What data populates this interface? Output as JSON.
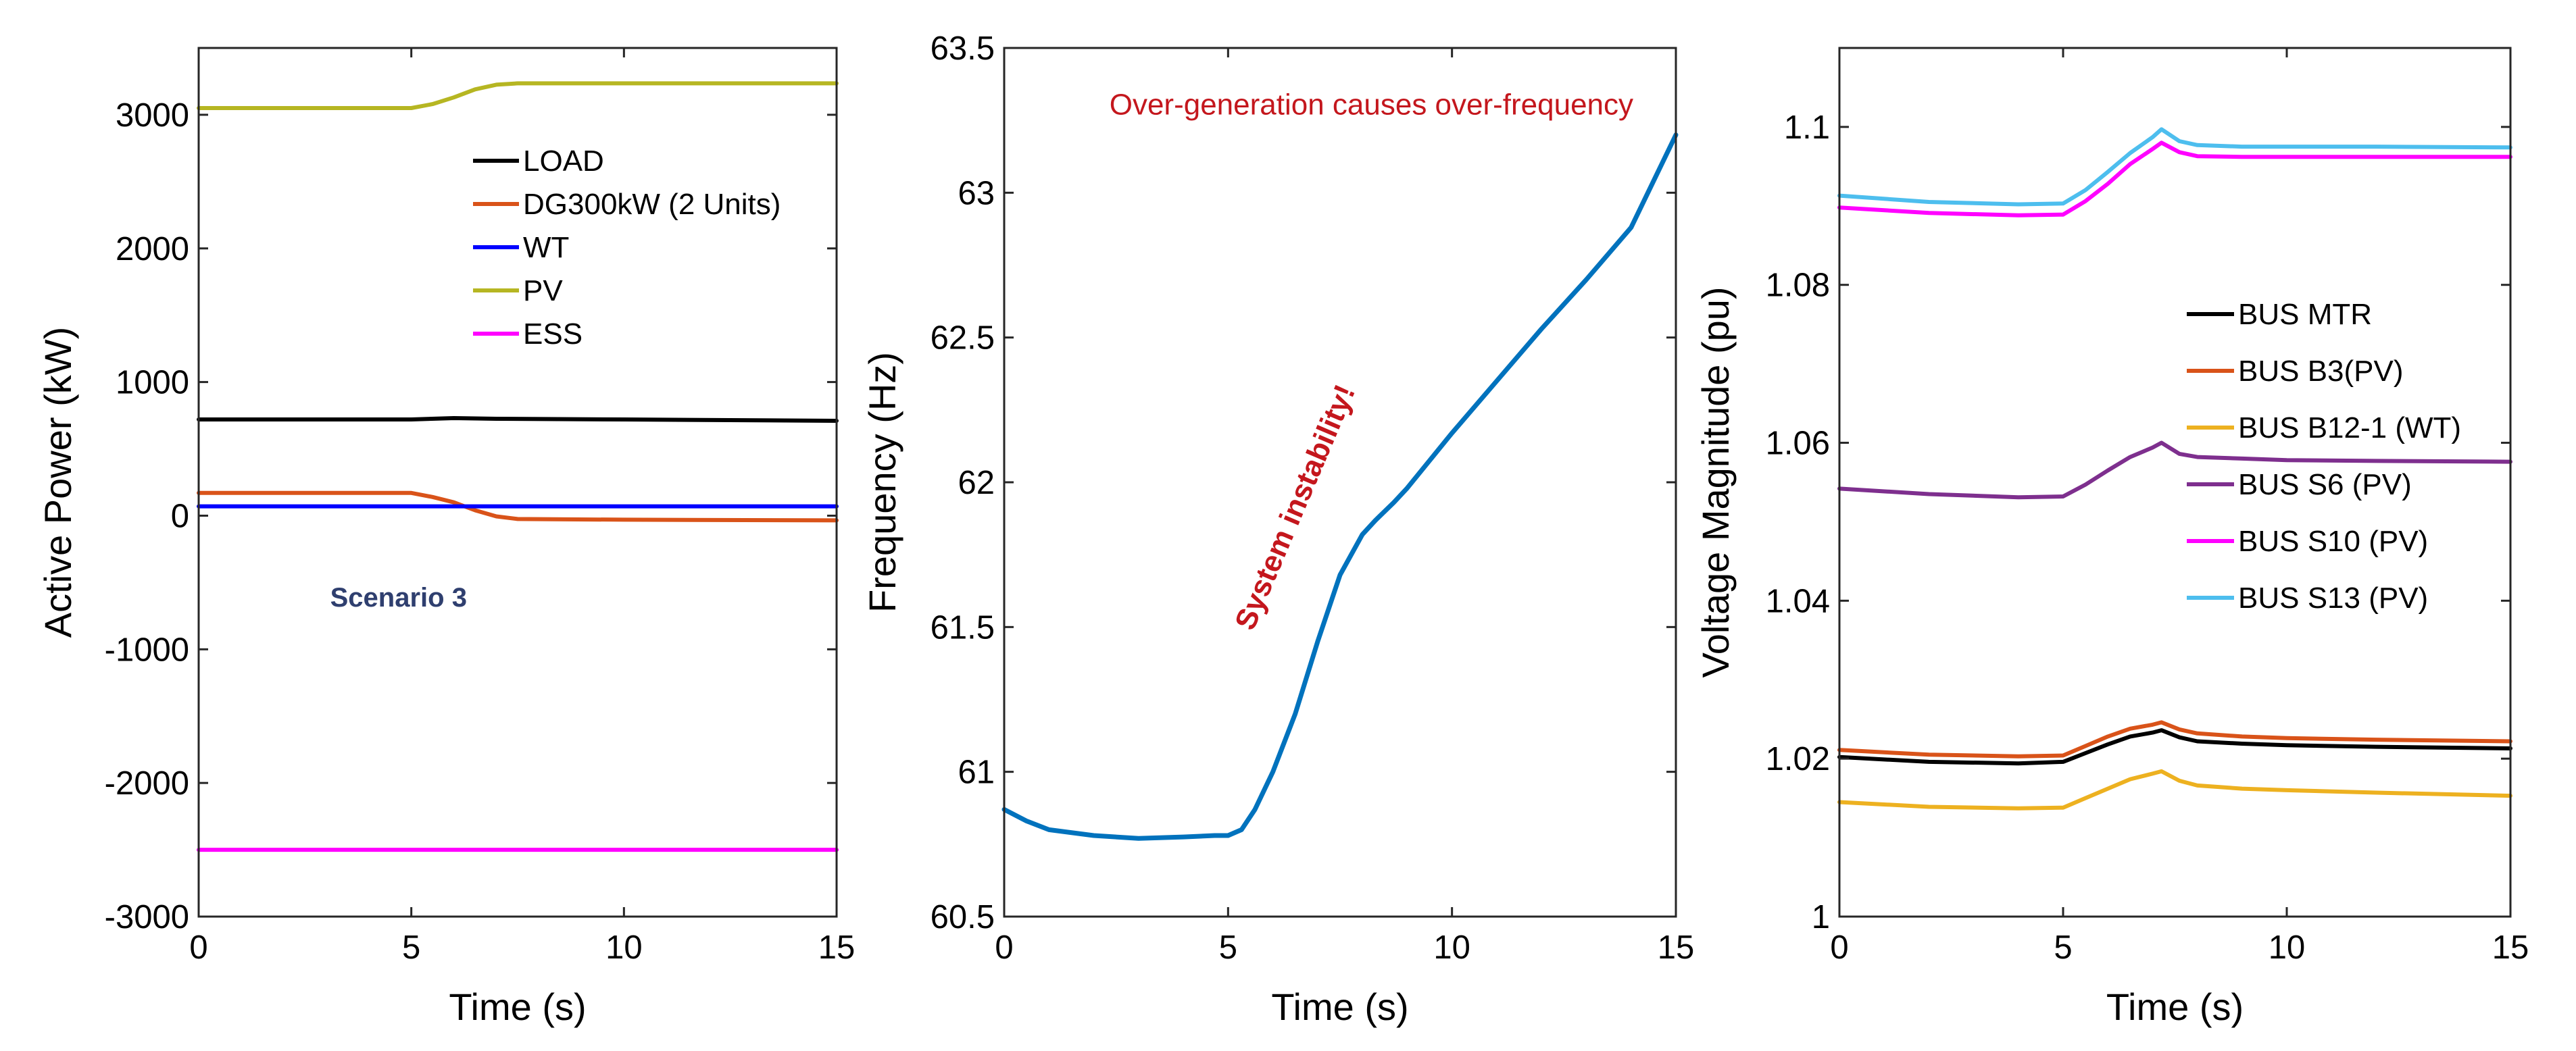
{
  "chart_data": [
    {
      "type": "line",
      "xlabel": "Time (s)",
      "ylabel": "Active Power (kW)",
      "xlim": [
        0,
        15
      ],
      "ylim": [
        -3000,
        3500
      ],
      "xticks": [
        0,
        5,
        10,
        15
      ],
      "yticks": [
        -3000,
        -2000,
        -1000,
        0,
        1000,
        2000,
        3000
      ],
      "grid": false,
      "legend_position": "upper-center",
      "annotations": [
        {
          "text": "Scenario 3",
          "x": 4.7,
          "y": -680,
          "color": "#2f3f6f",
          "bold": true
        }
      ],
      "series": [
        {
          "name": "LOAD",
          "color": "#000000",
          "points": [
            [
              0,
              720
            ],
            [
              5,
              720
            ],
            [
              6,
              730
            ],
            [
              7,
              725
            ],
            [
              10,
              720
            ],
            [
              15,
              710
            ]
          ]
        },
        {
          "name": "DG300kW (2 Units)",
          "color": "#d95319",
          "points": [
            [
              0,
              170
            ],
            [
              5,
              170
            ],
            [
              5.5,
              140
            ],
            [
              6,
              100
            ],
            [
              6.5,
              40
            ],
            [
              7,
              -5
            ],
            [
              7.5,
              -25
            ],
            [
              10,
              -30
            ],
            [
              15,
              -35
            ]
          ]
        },
        {
          "name": "WT",
          "color": "#0000ff",
          "points": [
            [
              0,
              70
            ],
            [
              5,
              70
            ],
            [
              10,
              70
            ],
            [
              15,
              70
            ]
          ]
        },
        {
          "name": "PV",
          "color": "#b6b622",
          "points": [
            [
              0,
              3050
            ],
            [
              5,
              3050
            ],
            [
              5.5,
              3080
            ],
            [
              6,
              3130
            ],
            [
              6.5,
              3190
            ],
            [
              7,
              3225
            ],
            [
              7.5,
              3235
            ],
            [
              10,
              3235
            ],
            [
              15,
              3235
            ]
          ]
        },
        {
          "name": "ESS",
          "color": "#ff00ff",
          "points": [
            [
              0,
              -2500
            ],
            [
              5,
              -2500
            ],
            [
              10,
              -2500
            ],
            [
              15,
              -2500
            ]
          ]
        }
      ]
    },
    {
      "type": "line",
      "xlabel": "Time (s)",
      "ylabel": "Frequency (Hz)",
      "xlim": [
        0,
        15
      ],
      "ylim": [
        60.5,
        63.5
      ],
      "xticks": [
        0,
        5,
        10,
        15
      ],
      "yticks": [
        60.5,
        61,
        61.5,
        62,
        62.5,
        63,
        63.5
      ],
      "grid": false,
      "annotations": [
        {
          "text": "Over-generation causes over-frequency",
          "x": 8.2,
          "y": 63.27,
          "color": "#c4171d",
          "bold": false
        },
        {
          "text": "System instability!",
          "x": 6.7,
          "y": 61.9,
          "color": "#c4171d",
          "bold": true,
          "rotation": -67
        }
      ],
      "series": [
        {
          "name": "",
          "color": "#0072bd",
          "points": [
            [
              0,
              60.87
            ],
            [
              0.5,
              60.83
            ],
            [
              1,
              60.8
            ],
            [
              2,
              60.78
            ],
            [
              3,
              60.77
            ],
            [
              4,
              60.775
            ],
            [
              4.7,
              60.78
            ],
            [
              5,
              60.78
            ],
            [
              5.3,
              60.8
            ],
            [
              5.6,
              60.87
            ],
            [
              6,
              61.0
            ],
            [
              6.5,
              61.2
            ],
            [
              7,
              61.45
            ],
            [
              7.5,
              61.68
            ],
            [
              8,
              61.82
            ],
            [
              8.3,
              61.87
            ],
            [
              8.7,
              61.93
            ],
            [
              9,
              61.98
            ],
            [
              10,
              62.17
            ],
            [
              11,
              62.35
            ],
            [
              12,
              62.53
            ],
            [
              13,
              62.7
            ],
            [
              14,
              62.88
            ],
            [
              15,
              63.2
            ]
          ]
        }
      ]
    },
    {
      "type": "line",
      "xlabel": "Time (s)",
      "ylabel": "Voltage Magnitude (pu)",
      "xlim": [
        0,
        15
      ],
      "ylim": [
        1,
        1.11
      ],
      "xticks": [
        0,
        5,
        10,
        15
      ],
      "yticks": [
        1,
        1.02,
        1.04,
        1.06,
        1.08,
        1.1
      ],
      "yticklabels": [
        "1",
        "1.02",
        "1.04",
        "1.06",
        "1.08",
        "1.1"
      ],
      "grid": false,
      "legend_position": "right",
      "series": [
        {
          "name": "BUS MTR",
          "color": "#000000",
          "points": [
            [
              0,
              1.0202
            ],
            [
              2,
              1.0196
            ],
            [
              4,
              1.0194
            ],
            [
              5,
              1.0196
            ],
            [
              5.5,
              1.0207
            ],
            [
              6,
              1.0218
            ],
            [
              6.5,
              1.0228
            ],
            [
              7,
              1.0233
            ],
            [
              7.2,
              1.0236
            ],
            [
              7.6,
              1.0227
            ],
            [
              8,
              1.0222
            ],
            [
              9,
              1.0219
            ],
            [
              10,
              1.0217
            ],
            [
              12,
              1.0215
            ],
            [
              15,
              1.0213
            ]
          ]
        },
        {
          "name": "BUS B3(PV)",
          "color": "#d95319",
          "points": [
            [
              0,
              1.0211
            ],
            [
              2,
              1.0205
            ],
            [
              4,
              1.0203
            ],
            [
              5,
              1.0204
            ],
            [
              5.5,
              1.0216
            ],
            [
              6,
              1.0228
            ],
            [
              6.5,
              1.0238
            ],
            [
              7,
              1.0243
            ],
            [
              7.2,
              1.0246
            ],
            [
              7.6,
              1.0237
            ],
            [
              8,
              1.0232
            ],
            [
              9,
              1.0228
            ],
            [
              10,
              1.0226
            ],
            [
              12,
              1.0224
            ],
            [
              15,
              1.0222
            ]
          ]
        },
        {
          "name": "BUS B12-1 (WT)",
          "color": "#edb120",
          "points": [
            [
              0,
              1.0145
            ],
            [
              2,
              1.0139
            ],
            [
              4,
              1.0137
            ],
            [
              5,
              1.0138
            ],
            [
              5.5,
              1.015
            ],
            [
              6,
              1.0162
            ],
            [
              6.5,
              1.0174
            ],
            [
              7,
              1.0181
            ],
            [
              7.2,
              1.0184
            ],
            [
              7.6,
              1.0172
            ],
            [
              8,
              1.0166
            ],
            [
              9,
              1.0162
            ],
            [
              10,
              1.016
            ],
            [
              12,
              1.0157
            ],
            [
              15,
              1.0153
            ]
          ]
        },
        {
          "name": "BUS S6 (PV)",
          "color": "#7e2f8e",
          "points": [
            [
              0,
              1.0542
            ],
            [
              2,
              1.0535
            ],
            [
              4,
              1.0531
            ],
            [
              5,
              1.0532
            ],
            [
              5.5,
              1.0547
            ],
            [
              6,
              1.0565
            ],
            [
              6.5,
              1.0582
            ],
            [
              7,
              1.0594
            ],
            [
              7.2,
              1.06
            ],
            [
              7.6,
              1.0586
            ],
            [
              8,
              1.0582
            ],
            [
              9,
              1.058
            ],
            [
              10,
              1.0578
            ],
            [
              12,
              1.0577
            ],
            [
              15,
              1.0576
            ]
          ]
        },
        {
          "name": "BUS S10 (PV)",
          "color": "#ff00ff",
          "points": [
            [
              0,
              1.0898
            ],
            [
              2,
              1.0891
            ],
            [
              4,
              1.0888
            ],
            [
              5,
              1.0889
            ],
            [
              5.5,
              1.0906
            ],
            [
              6,
              1.0928
            ],
            [
              6.5,
              1.0953
            ],
            [
              7,
              1.0972
            ],
            [
              7.2,
              1.098
            ],
            [
              7.6,
              1.0968
            ],
            [
              8,
              1.0963
            ],
            [
              9,
              1.0962
            ],
            [
              10,
              1.0962
            ],
            [
              12,
              1.0962
            ],
            [
              15,
              1.0962
            ]
          ]
        },
        {
          "name": "BUS S13 (PV)",
          "color": "#4dbeee",
          "points": [
            [
              0,
              1.0913
            ],
            [
              2,
              1.0905
            ],
            [
              4,
              1.0902
            ],
            [
              5,
              1.0903
            ],
            [
              5.5,
              1.092
            ],
            [
              6,
              1.0943
            ],
            [
              6.5,
              1.0967
            ],
            [
              7,
              1.0987
            ],
            [
              7.2,
              1.0997
            ],
            [
              7.6,
              1.0982
            ],
            [
              8,
              1.0977
            ],
            [
              9,
              1.0975
            ],
            [
              10,
              1.0975
            ],
            [
              12,
              1.0975
            ],
            [
              15,
              1.0974
            ]
          ]
        }
      ]
    }
  ]
}
